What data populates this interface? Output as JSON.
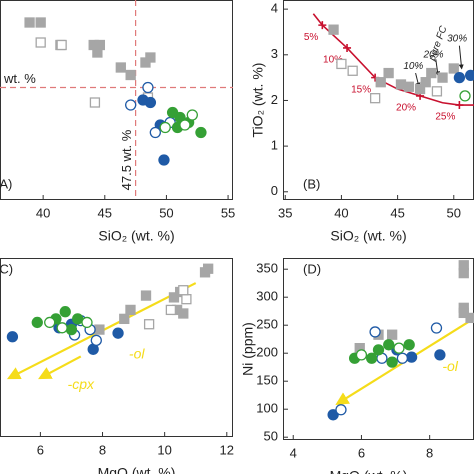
{
  "chart_data": [
    {
      "type": "scatter",
      "label": "(A)",
      "xlabel": "SiO₂ (wt. %)",
      "xlim": [
        36.5,
        55.4
      ],
      "ylim": [
        4,
        12
      ],
      "xticks": [
        40,
        45,
        50,
        55
      ],
      "yticks": [],
      "hline": 8.5,
      "vline": 47.5,
      "ref_color": "#e07a7a",
      "hline_label": "wt. %",
      "vline_label": "47.5 wt. %",
      "series": [
        {
          "marker": "square",
          "filled": true,
          "color": "#a6a6a6",
          "x": [
            38.9,
            39.8,
            41.4,
            44.1,
            44.6,
            44.4,
            46.3,
            47.1,
            48.3,
            48.7
          ],
          "y": [
            11.1,
            11.1,
            10.2,
            10.2,
            10.2,
            9.9,
            9.3,
            9.0,
            9.5,
            9.7
          ]
        },
        {
          "marker": "square",
          "filled": false,
          "color": "#a6a6a6",
          "x": [
            39.8,
            41.5,
            44.2,
            48.5
          ],
          "y": [
            10.3,
            10.2,
            7.9,
            8.1
          ]
        },
        {
          "marker": "circle",
          "filled": true,
          "color": "#1f5aa6",
          "x": [
            48.1,
            48.7,
            49.5,
            49.8
          ],
          "y": [
            8.0,
            7.9,
            7.0,
            5.6
          ]
        },
        {
          "marker": "circle",
          "filled": false,
          "color": "#1f5aa6",
          "x": [
            48.5,
            47.1,
            49.1,
            50.3
          ],
          "y": [
            8.5,
            7.8,
            6.7,
            7.1
          ]
        },
        {
          "marker": "circle",
          "filled": true,
          "color": "#35a035",
          "x": [
            50.5,
            51.1,
            51.8,
            52.8,
            50.9
          ],
          "y": [
            7.5,
            7.3,
            7.1,
            6.7,
            6.9
          ]
        },
        {
          "marker": "circle",
          "filled": false,
          "color": "#35a035",
          "x": [
            49.9,
            51.5,
            52.1
          ],
          "y": [
            6.9,
            7.0,
            7.4
          ]
        }
      ]
    },
    {
      "type": "scatter",
      "label": "(B)",
      "xlabel": "SiO₂ (wt. %)",
      "ylabel": "TiO₂ (wt. %)",
      "xlim": [
        34.8,
        51.8
      ],
      "ylim": [
        -0.18,
        4.2
      ],
      "xticks": [
        35,
        40,
        45,
        50
      ],
      "yticks": [
        0,
        1,
        2,
        3,
        4
      ],
      "curve": {
        "color": "#c8102e",
        "x": [
          37.5,
          38.3,
          40.5,
          43,
          45,
          47,
          49,
          50.5,
          52
        ],
        "y": [
          3.9,
          3.65,
          3.15,
          2.5,
          2.25,
          2.1,
          1.95,
          1.9,
          1.9
        ]
      },
      "curve_marks": {
        "labels": [
          "5%",
          "10%",
          "15%",
          "20%",
          "25%"
        ],
        "x": [
          38.3,
          40.5,
          43,
          47,
          50.5
        ],
        "y": [
          3.65,
          3.15,
          2.5,
          2.1,
          1.9
        ]
      },
      "annotations": [
        "pure FC",
        "10%",
        "20%",
        "30%"
      ],
      "series": [
        {
          "marker": "square",
          "filled": true,
          "color": "#a6a6a6",
          "x": [
            39.3,
            43.5,
            44.2,
            45.3,
            46,
            47,
            47.5,
            48,
            49,
            50
          ],
          "y": [
            3.55,
            2.4,
            2.6,
            2.35,
            2.3,
            2.25,
            2.4,
            2.6,
            2.5,
            2.7
          ]
        },
        {
          "marker": "square",
          "filled": false,
          "color": "#a6a6a6",
          "x": [
            40,
            41,
            43,
            48.5
          ],
          "y": [
            2.8,
            2.65,
            2.05,
            2.2
          ]
        },
        {
          "marker": "circle",
          "filled": true,
          "color": "#1f5aa6",
          "x": [
            50.5,
            51.5
          ],
          "y": [
            2.5,
            2.55
          ]
        },
        {
          "marker": "circle",
          "filled": false,
          "color": "#35a035",
          "x": [
            51
          ],
          "y": [
            2.1
          ]
        }
      ]
    },
    {
      "type": "scatter",
      "label": "(C)",
      "xlabel": "MgO (wt. %)",
      "xlim": [
        4.7,
        12.2
      ],
      "ylim": [
        0,
        10
      ],
      "xticks": [
        6,
        8,
        10,
        12
      ],
      "yticks": [],
      "annotations": [
        "-ol",
        "-cpx"
      ],
      "arrow_color": "#f5dc1a",
      "series": [
        {
          "marker": "square",
          "filled": true,
          "color": "#a6a6a6",
          "x": [
            11.4,
            11.3,
            10.5,
            10.3,
            10.4,
            10.6,
            9.4,
            8.9,
            8.7,
            7.9
          ],
          "y": [
            9.4,
            9.2,
            8.1,
            7.8,
            7.1,
            6.9,
            7.9,
            7.1,
            6.6,
            6.0
          ]
        },
        {
          "marker": "square",
          "filled": false,
          "color": "#a6a6a6",
          "x": [
            10.7,
            10.6,
            10.2,
            9.5
          ],
          "y": [
            7.7,
            8.2,
            7.1,
            6.3
          ]
        },
        {
          "marker": "circle",
          "filled": true,
          "color": "#1f5aa6",
          "x": [
            5.1,
            7.0,
            7.7,
            8.5,
            6.6
          ],
          "y": [
            5.6,
            6.3,
            4.9,
            5.8,
            6.1
          ]
        },
        {
          "marker": "circle",
          "filled": false,
          "color": "#1f5aa6",
          "x": [
            7.3,
            7.6,
            7.8,
            7.1
          ],
          "y": [
            6.5,
            6.0,
            5.4,
            5.7
          ]
        },
        {
          "marker": "circle",
          "filled": true,
          "color": "#35a035",
          "x": [
            5.9,
            6.5,
            6.8,
            7.0,
            7.2
          ],
          "y": [
            6.4,
            6.6,
            7.0,
            6.0,
            6.6
          ]
        },
        {
          "marker": "circle",
          "filled": false,
          "color": "#35a035",
          "x": [
            6.3,
            6.7,
            7.5
          ],
          "y": [
            6.4,
            6.1,
            6.4
          ]
        }
      ]
    },
    {
      "type": "scatter",
      "label": "(D)",
      "xlabel": "MgO (wt. %)",
      "ylabel": "Ni (ppm)",
      "xlim": [
        3.7,
        9.3
      ],
      "ylim": [
        45,
        370
      ],
      "xticks": [
        4,
        6,
        8
      ],
      "yticks": [
        50,
        100,
        150,
        200,
        250,
        300,
        350
      ],
      "annotations": [
        "-ol"
      ],
      "arrow_color": "#f5dc1a",
      "series": [
        {
          "marker": "square",
          "filled": true,
          "color": "#a6a6a6",
          "x": [
            9.0,
            9.0,
            9.0,
            9.0,
            6.5,
            6.9,
            5.95,
            9.2
          ],
          "y": [
            357,
            343,
            281,
            272,
            233,
            233,
            209,
            263
          ]
        },
        {
          "marker": "circle",
          "filled": true,
          "color": "#1f5aa6",
          "x": [
            5.17,
            7.04,
            7.47,
            8.3
          ],
          "y": [
            90,
            206,
            193,
            197
          ]
        },
        {
          "marker": "circle",
          "filled": false,
          "color": "#1f5aa6",
          "x": [
            5.4,
            6.4,
            6.6,
            7.2,
            8.2
          ],
          "y": [
            99,
            238,
            191,
            191,
            245
          ]
        },
        {
          "marker": "circle",
          "filled": true,
          "color": "#35a035",
          "x": [
            5.8,
            6.3,
            6.5,
            6.9,
            7.4,
            6.8
          ],
          "y": [
            191,
            191,
            206,
            184,
            215,
            215
          ]
        },
        {
          "marker": "circle",
          "filled": false,
          "color": "#35a035",
          "x": [
            6.0,
            7.1
          ],
          "y": [
            197,
            209
          ]
        }
      ]
    }
  ]
}
